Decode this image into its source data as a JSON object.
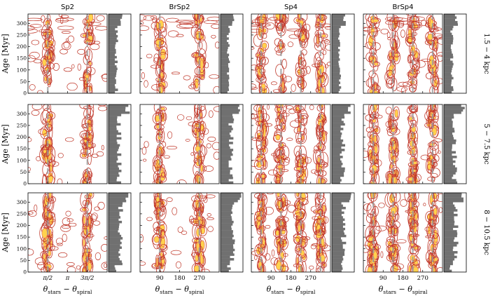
{
  "figure": {
    "columns": [
      "Sp2",
      "BrSp2",
      "Sp4",
      "BrSp4"
    ],
    "rows": [
      "1.5 − 4 kpc",
      "5 − 7.5 kpc",
      "8 − 10.5 kpc"
    ],
    "ylabel": "Age [Myr]",
    "xlabel_main": "θ",
    "xlabel_sub1": "stars",
    "xlabel_sub2": "spiral",
    "xlabel_minus": " − "
  },
  "chart_data": {
    "type": "heatmap",
    "description_values": "contour density of star-forming regions vs. azimuthal offset from spiral arm and stellar age, with marginal age histograms",
    "y_axis": {
      "label": "Age [Myr]",
      "ticks": [
        0,
        50,
        100,
        150,
        200,
        250,
        300
      ],
      "lim": [
        0,
        340
      ]
    },
    "x_axis": {
      "lim_deg": [
        0,
        360
      ],
      "ticks_by_column": [
        {
          "values_deg": [
            90,
            180,
            270
          ],
          "labels": [
            "π/2",
            "π",
            "3π/2"
          ]
        },
        {
          "values_deg": [
            90,
            180,
            270
          ],
          "labels": [
            "90",
            "180",
            "270"
          ]
        },
        {
          "values_deg": [
            90,
            180,
            270
          ],
          "labels": [
            "90",
            "180",
            "270"
          ]
        },
        {
          "values_deg": [
            90,
            180,
            270
          ],
          "labels": [
            "90",
            "180",
            "270"
          ]
        }
      ]
    },
    "spiral_arm_positions_deg": [
      [
        90,
        270
      ],
      [
        90,
        270
      ],
      [
        45,
        135,
        225,
        315
      ],
      [
        45,
        135,
        225,
        315
      ]
    ],
    "colors": {
      "outer_contour": "#c0392b",
      "mid_contour": "#e8735a",
      "inner_fill": "#ffd24d",
      "dash": "#9a9a9a",
      "hist": "#707070"
    }
  }
}
